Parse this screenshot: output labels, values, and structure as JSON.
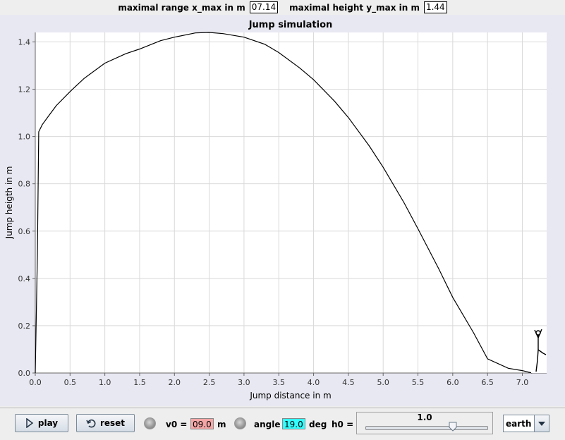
{
  "top_bar": {
    "xmax_label": "maximal range x_max in m",
    "xmax_value": "07.14",
    "ymax_label": "maximal height y_max in m",
    "ymax_value": "1.44"
  },
  "chart_data": {
    "type": "line",
    "title": "Jump simulation",
    "xlabel": "Jump distance in m",
    "ylabel": "Jump heigth in m",
    "xlim": [
      0,
      7.35
    ],
    "ylim": [
      0,
      1.44
    ],
    "xticks": [
      0.0,
      0.5,
      1.0,
      1.5,
      2.0,
      2.5,
      3.0,
      3.5,
      4.0,
      4.5,
      5.0,
      5.5,
      6.0,
      6.5,
      7.0
    ],
    "xtick_labels": [
      "0.0",
      "0.5",
      "1.0",
      "1.5",
      "2.0",
      "2.5",
      "3.0",
      "3.5",
      "4.0",
      "4.5",
      "5.0",
      "5.5",
      "6.0",
      "6.5",
      "7.0"
    ],
    "yticks": [
      0.0,
      0.2,
      0.4,
      0.6,
      0.8,
      1.0,
      1.2,
      1.4
    ],
    "ytick_labels": [
      "0.0",
      "0.2",
      "0.4",
      "0.6",
      "0.8",
      "1.0",
      "1.2",
      "1.4"
    ],
    "grid": true,
    "series": [
      {
        "x": [
          0.0,
          0.03,
          0.05,
          0.1,
          0.2,
          0.3,
          0.5,
          0.7,
          1.0,
          1.3,
          1.5,
          1.8,
          2.0,
          2.3,
          2.5,
          2.7,
          3.0,
          3.3,
          3.5,
          3.8,
          4.0,
          4.3,
          4.5,
          4.8,
          5.0,
          5.3,
          5.5,
          5.8,
          6.0,
          6.3,
          6.5,
          6.8,
          7.0,
          7.14
        ],
        "y": [
          0.0,
          0.5,
          1.02,
          1.05,
          1.09,
          1.13,
          1.19,
          1.245,
          1.31,
          1.35,
          1.37,
          1.405,
          1.42,
          1.438,
          1.44,
          1.435,
          1.42,
          1.39,
          1.355,
          1.29,
          1.24,
          1.15,
          1.08,
          0.96,
          0.87,
          0.72,
          0.61,
          0.44,
          0.32,
          0.17,
          0.06,
          0.02,
          0.01,
          0.0
        ]
      }
    ],
    "color": "#000000"
  },
  "controls": {
    "play_label": "play",
    "reset_label": "reset",
    "v0_label": "v0 =",
    "v0_value": "09.0",
    "v0_unit": "m",
    "angle_label": "angle",
    "angle_value": "19.0",
    "angle_unit": "deg",
    "h0_label": "h0 =",
    "h0_value": "1.0",
    "h0_fraction": 0.72,
    "planet": "earth",
    "v0_color": "#f4a6a6",
    "angle_color": "#33ffff"
  }
}
